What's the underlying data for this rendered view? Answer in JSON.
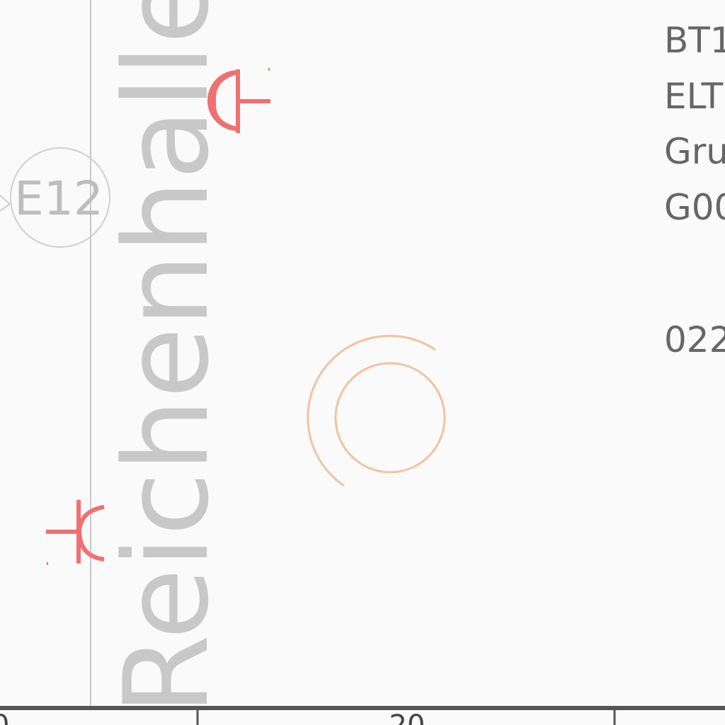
{
  "drawing": {
    "vertical_label": "Reichenhaller",
    "circle_label": "E12",
    "title_block": {
      "line1": "BT1",
      "line2": "ELT",
      "line3": "Gru",
      "line4": "G00",
      "line5": "022"
    },
    "ruler": {
      "left_partial": "0",
      "middle": "20"
    }
  },
  "colors": {
    "background": "#fafafa",
    "grid_line": "#c8c8c8",
    "symbol_red": "#f07070",
    "orange_circle": "#f2c2a2",
    "text_gray": "#666666",
    "watermark_gray": "#c8c8c8",
    "ruler_line": "#555555"
  },
  "icons": {
    "red_symbol": "socket-outlet-icon",
    "orange_symbol": "double-circle-icon"
  }
}
